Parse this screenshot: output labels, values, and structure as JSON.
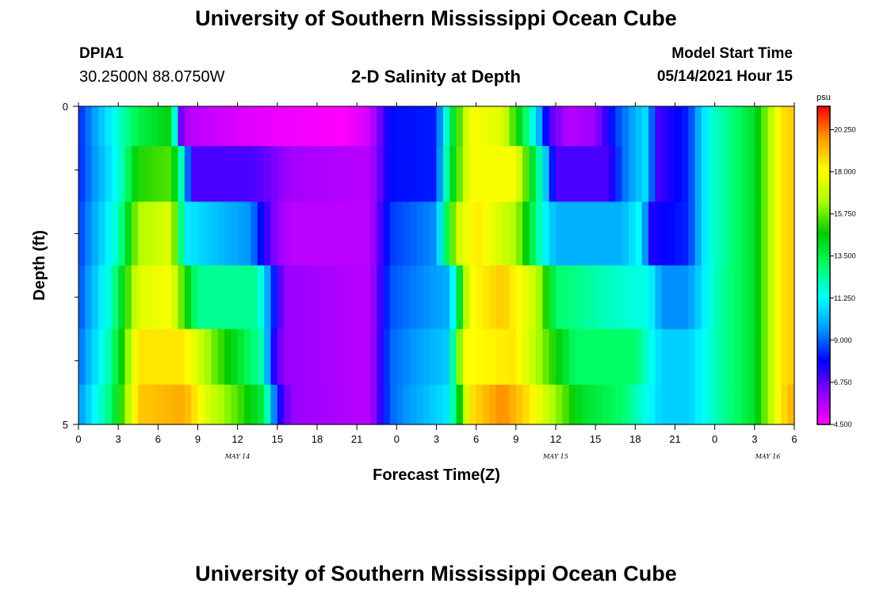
{
  "header": {
    "title": "University of Southern Mississippi Ocean Cube",
    "station_id": "DPIA1",
    "station_coords": "30.2500N  88.0750W",
    "subtitle": "2-D Salinity at Depth",
    "start_label": "Model Start Time",
    "start_value": "05/14/2021 Hour 15"
  },
  "footer": {
    "title": "University of Southern Mississippi Ocean Cube"
  },
  "colors": {
    "scale": [
      "#ff00ff",
      "#8a00ff",
      "#0000ff",
      "#0099ff",
      "#00ffff",
      "#00ff66",
      "#00cc00",
      "#aaff00",
      "#ffff00",
      "#ff9900",
      "#ff0000"
    ]
  },
  "chart_data": {
    "type": "heatmap",
    "title": "2-D Salinity at Depth",
    "xlabel": "Forecast Time(Z)",
    "ylabel": "Depth (ft)",
    "x_range": [
      0,
      54
    ],
    "x_ticks": [
      0,
      3,
      6,
      9,
      12,
      15,
      18,
      21,
      24,
      27,
      30,
      33,
      36,
      39,
      42,
      45,
      48,
      51,
      54
    ],
    "x_tick_labels": [
      "0",
      "3",
      "6",
      "9",
      "12",
      "15",
      "18",
      "21",
      "0",
      "3",
      "6",
      "9",
      "12",
      "15",
      "18",
      "21",
      "0",
      "3",
      "6"
    ],
    "day_labels": [
      {
        "text": "MAY  14",
        "x": 12
      },
      {
        "text": "MAY  15",
        "x": 36
      },
      {
        "text": "MAY  16",
        "x": 52
      }
    ],
    "y_range": [
      0,
      5
    ],
    "y_tick_labels": [
      {
        "depth": 0,
        "text": "0"
      },
      {
        "depth": 5,
        "text": "5"
      }
    ],
    "y_minor_ticks": [
      1,
      2,
      3,
      4
    ],
    "depth_rows": [
      0.25,
      1,
      2,
      3,
      4,
      4.75
    ],
    "value_range": [
      4.5,
      21.5
    ],
    "colorbar": {
      "unit": "psu",
      "ticks": [
        20.25,
        18.0,
        15.75,
        13.5,
        11.25,
        9.0,
        6.75,
        4.5
      ],
      "labels": [
        "20.250",
        "18.000",
        "15.750",
        "13.500",
        "11.250",
        "9.000",
        "6.750",
        "4.500"
      ]
    },
    "salinity_keyframes": [
      [
        [
          0,
          8.3
        ],
        [
          3,
          11.8
        ],
        [
          4.5,
          13.5
        ],
        [
          7,
          14.5
        ],
        [
          7.8,
          6.0
        ],
        [
          8.5,
          5.5
        ],
        [
          14,
          4.8
        ],
        [
          20,
          4.5
        ],
        [
          22,
          5.2
        ],
        [
          23.5,
          8.0
        ],
        [
          27,
          8.2
        ],
        [
          28,
          13.0
        ],
        [
          29.5,
          18.0
        ],
        [
          32,
          17.5
        ],
        [
          34.5,
          11.0
        ],
        [
          35.5,
          7.0
        ],
        [
          37,
          5.5
        ],
        [
          39,
          6.0
        ],
        [
          40.5,
          8.5
        ],
        [
          43,
          11.0
        ],
        [
          43.5,
          7.0
        ],
        [
          46,
          8.3
        ],
        [
          47.5,
          11.5
        ],
        [
          51,
          14.0
        ],
        [
          53,
          18.5
        ],
        [
          54,
          19.0
        ]
      ],
      [
        [
          0,
          8.3
        ],
        [
          3,
          11.5
        ],
        [
          4.5,
          15.0
        ],
        [
          7,
          15.5
        ],
        [
          8,
          11.0
        ],
        [
          8.5,
          7.0
        ],
        [
          12,
          7.0
        ],
        [
          13,
          7.0
        ],
        [
          14.5,
          6.5
        ],
        [
          16,
          5.8
        ],
        [
          22,
          5.5
        ],
        [
          23.5,
          8.0
        ],
        [
          27,
          8.2
        ],
        [
          28,
          13.5
        ],
        [
          29.5,
          18.0
        ],
        [
          33,
          18.0
        ],
        [
          35,
          11.5
        ],
        [
          36,
          7.0
        ],
        [
          40,
          7.0
        ],
        [
          41,
          9.0
        ],
        [
          43,
          11.0
        ],
        [
          43.5,
          7.0
        ],
        [
          46,
          8.3
        ],
        [
          47.5,
          11.5
        ],
        [
          51,
          14.0
        ],
        [
          53,
          18.5
        ],
        [
          54,
          19.0
        ]
      ],
      [
        [
          0,
          8.5
        ],
        [
          3,
          12.0
        ],
        [
          4.5,
          16.5
        ],
        [
          7,
          17.5
        ],
        [
          8,
          11.0
        ],
        [
          13,
          9.5
        ],
        [
          14,
          7.5
        ],
        [
          15,
          6.0
        ],
        [
          16,
          5.5
        ],
        [
          22,
          5.5
        ],
        [
          23.5,
          8.5
        ],
        [
          27,
          9.5
        ],
        [
          28.5,
          17.0
        ],
        [
          30,
          18.5
        ],
        [
          33,
          16.5
        ],
        [
          35,
          11.5
        ],
        [
          36,
          10.0
        ],
        [
          41,
          10.0
        ],
        [
          42.5,
          11.5
        ],
        [
          43,
          7.5
        ],
        [
          46,
          8.3
        ],
        [
          47.5,
          11.5
        ],
        [
          51,
          14.0
        ],
        [
          53,
          18.5
        ],
        [
          54,
          19.0
        ]
      ],
      [
        [
          0,
          8.7
        ],
        [
          2.5,
          12.0
        ],
        [
          4.5,
          17.5
        ],
        [
          7,
          18.0
        ],
        [
          8,
          15.0
        ],
        [
          9,
          12.5
        ],
        [
          13.5,
          12.5
        ],
        [
          14.5,
          9.0
        ],
        [
          15.5,
          6.0
        ],
        [
          22,
          5.5
        ],
        [
          23.5,
          8.8
        ],
        [
          28,
          10.0
        ],
        [
          29.5,
          18.0
        ],
        [
          32,
          19.0
        ],
        [
          34.5,
          17.0
        ],
        [
          36,
          13.0
        ],
        [
          40,
          12.0
        ],
        [
          43,
          11.5
        ],
        [
          44,
          9.5
        ],
        [
          46,
          9.5
        ],
        [
          48,
          12.0
        ],
        [
          51,
          14.0
        ],
        [
          53,
          18.5
        ],
        [
          54,
          19.0
        ]
      ],
      [
        [
          0,
          9.0
        ],
        [
          2.5,
          12.5
        ],
        [
          4.5,
          18.5
        ],
        [
          8,
          18.5
        ],
        [
          10,
          16.0
        ],
        [
          12,
          14.0
        ],
        [
          14,
          12.0
        ],
        [
          14.5,
          8.0
        ],
        [
          15.5,
          6.0
        ],
        [
          22,
          5.5
        ],
        [
          23.5,
          9.0
        ],
        [
          28,
          10.5
        ],
        [
          29,
          18.0
        ],
        [
          33,
          18.5
        ],
        [
          35,
          16.0
        ],
        [
          37.5,
          13.0
        ],
        [
          42,
          13.0
        ],
        [
          44,
          10.5
        ],
        [
          46,
          10.5
        ],
        [
          48,
          12.0
        ],
        [
          51,
          14.0
        ],
        [
          53,
          18.5
        ],
        [
          54,
          19.0
        ]
      ],
      [
        [
          0,
          9.5
        ],
        [
          2.5,
          13.0
        ],
        [
          4.5,
          19.0
        ],
        [
          8,
          19.5
        ],
        [
          10,
          17.0
        ],
        [
          12,
          15.5
        ],
        [
          14,
          13.5
        ],
        [
          15,
          8.0
        ],
        [
          16,
          6.0
        ],
        [
          22,
          5.5
        ],
        [
          23.5,
          9.0
        ],
        [
          28,
          11.0
        ],
        [
          29.5,
          18.5
        ],
        [
          32,
          20.0
        ],
        [
          34,
          18.5
        ],
        [
          38,
          14.0
        ],
        [
          41,
          13.0
        ],
        [
          44,
          10.5
        ],
        [
          46,
          10.5
        ],
        [
          48,
          12.0
        ],
        [
          51,
          14.0
        ],
        [
          53,
          18.5
        ],
        [
          54,
          19.5
        ]
      ]
    ]
  }
}
